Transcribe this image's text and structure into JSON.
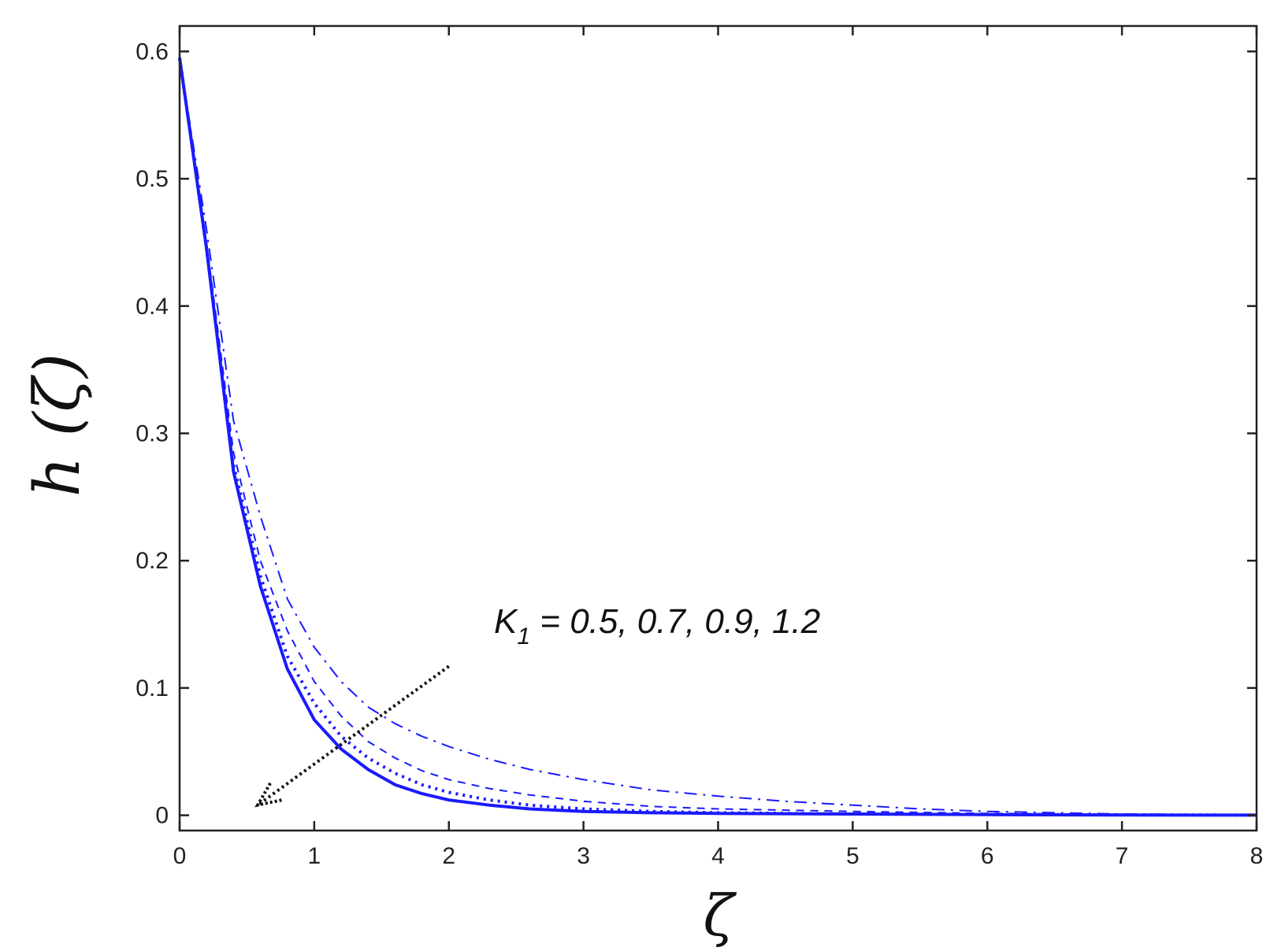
{
  "chart_data": {
    "type": "line",
    "xlabel": "ζ",
    "ylabel": "h (ζ)",
    "xlim": [
      0,
      8
    ],
    "ylim": [
      -0.012,
      0.62
    ],
    "xticks": [
      0,
      1,
      2,
      3,
      4,
      5,
      6,
      7,
      8
    ],
    "yticks": [
      0,
      0.1,
      0.2,
      0.3,
      0.4,
      0.5,
      0.6
    ],
    "xtick_labels": [
      "0",
      "1",
      "2",
      "3",
      "4",
      "5",
      "6",
      "7",
      "8"
    ],
    "ytick_labels": [
      "0",
      "0.1",
      "0.2",
      "0.3",
      "0.4",
      "0.5",
      "0.6"
    ],
    "grid": false,
    "legend": "none",
    "line_color": "#1a1aff",
    "arrow_color": "#111111",
    "annotation": {
      "symbol": "K",
      "subscript": "1",
      "text": " =  0.5, 0.7, 0.9, 1.2"
    },
    "arrow": {
      "from": [
        2.0,
        0.117
      ],
      "to": [
        0.58,
        0.008
      ]
    },
    "series": [
      {
        "style": "solid",
        "x": [
          0,
          0.2,
          0.4,
          0.6,
          0.8,
          1.0,
          1.2,
          1.4,
          1.6,
          1.8,
          2.0,
          2.3,
          2.6,
          3.0,
          3.5,
          4.0,
          5.0,
          6.0,
          7.0,
          8.0
        ],
        "y": [
          0.595,
          0.445,
          0.27,
          0.18,
          0.115,
          0.075,
          0.052,
          0.036,
          0.024,
          0.017,
          0.012,
          0.008,
          0.005,
          0.003,
          0.002,
          0.0015,
          0.001,
          0.0005,
          0.0002,
          0.0001
        ]
      },
      {
        "style": "dotted",
        "x": [
          0,
          0.2,
          0.4,
          0.6,
          0.8,
          1.0,
          1.2,
          1.4,
          1.6,
          1.8,
          2.0,
          2.3,
          2.6,
          3.0,
          3.5,
          4.0,
          5.0,
          6.0,
          7.0,
          8.0
        ],
        "y": [
          0.595,
          0.445,
          0.275,
          0.188,
          0.125,
          0.088,
          0.062,
          0.045,
          0.033,
          0.024,
          0.018,
          0.012,
          0.008,
          0.005,
          0.003,
          0.002,
          0.001,
          0.0006,
          0.0003,
          0.0001
        ]
      },
      {
        "style": "dashed",
        "x": [
          0,
          0.2,
          0.4,
          0.6,
          0.8,
          1.0,
          1.2,
          1.4,
          1.6,
          1.8,
          2.0,
          2.3,
          2.6,
          3.0,
          3.5,
          4.0,
          5.0,
          6.0,
          7.0,
          8.0
        ],
        "y": [
          0.595,
          0.45,
          0.285,
          0.2,
          0.145,
          0.105,
          0.078,
          0.058,
          0.045,
          0.035,
          0.028,
          0.021,
          0.016,
          0.011,
          0.007,
          0.005,
          0.003,
          0.0015,
          0.0007,
          0.0003
        ]
      },
      {
        "style": "dashdot",
        "x": [
          0,
          0.2,
          0.4,
          0.6,
          0.8,
          1.0,
          1.2,
          1.4,
          1.6,
          1.8,
          2.0,
          2.3,
          2.6,
          3.0,
          3.5,
          4.0,
          4.5,
          5.0,
          5.5,
          6.0,
          7.0,
          8.0
        ],
        "y": [
          0.595,
          0.46,
          0.31,
          0.235,
          0.17,
          0.132,
          0.105,
          0.085,
          0.072,
          0.062,
          0.054,
          0.044,
          0.036,
          0.028,
          0.02,
          0.015,
          0.011,
          0.008,
          0.005,
          0.003,
          0.001,
          0.0004
        ]
      }
    ]
  }
}
